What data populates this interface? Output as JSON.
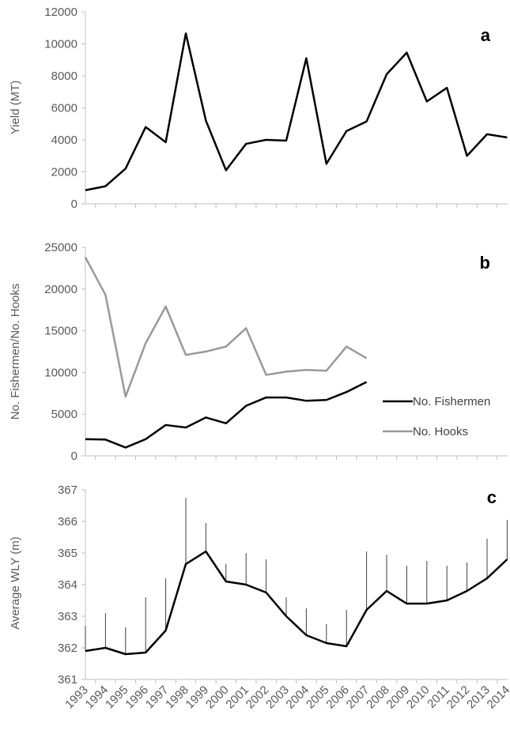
{
  "x_labels": [
    "1993",
    "1994",
    "1995",
    "1996",
    "1997",
    "1998",
    "1999",
    "2000",
    "2001",
    "2002",
    "2003",
    "2004",
    "2005",
    "2006",
    "2007",
    "2008",
    "2009",
    "2010",
    "2011",
    "2012",
    "2013",
    "2014"
  ],
  "colors": {
    "axis": "#bfbfbf",
    "tick_text": "#595959",
    "black_line": "#000000",
    "grey_line": "#999999"
  },
  "chart_data": [
    {
      "panel": "a",
      "type": "line",
      "ylabel": "Yield (MT)",
      "ylim": [
        0,
        12000
      ],
      "yticks": [
        "0",
        "2000",
        "4000",
        "6000",
        "8000",
        "10000",
        "12000"
      ],
      "x": [
        "1993",
        "1994",
        "1995",
        "1996",
        "1997",
        "1998",
        "1999",
        "2000",
        "2001",
        "2002",
        "2003",
        "2004",
        "2005",
        "2006",
        "2007",
        "2008",
        "2009",
        "2010",
        "2011",
        "2012",
        "2013",
        "2014"
      ],
      "series": [
        {
          "values": [
            850,
            1100,
            2200,
            4800,
            3850,
            10650,
            5200,
            2100,
            3750,
            4000,
            3950,
            9100,
            2500,
            4550,
            5150,
            8100,
            9450,
            6400,
            7250,
            3000,
            4350,
            4150
          ]
        }
      ]
    },
    {
      "panel": "b",
      "type": "line",
      "ylabel": "No. Fishermen/No. Hooks",
      "ylim": [
        0,
        25000
      ],
      "yticks": [
        "0",
        "5000",
        "10000",
        "15000",
        "20000",
        "25000"
      ],
      "x": [
        "1993",
        "1994",
        "1995",
        "1996",
        "1997",
        "1998",
        "1999",
        "2000",
        "2001",
        "2002",
        "2003",
        "2004",
        "2005",
        "2006",
        "2007"
      ],
      "legend_position": "right",
      "series": [
        {
          "name": "No. Fishermen",
          "values": [
            2000,
            1950,
            1000,
            2000,
            3700,
            3400,
            4600,
            3900,
            6000,
            7000,
            7000,
            6600,
            6700,
            7650,
            8850
          ]
        },
        {
          "name": "No. Hooks",
          "values": [
            23800,
            19300,
            7100,
            13500,
            17900,
            12100,
            12500,
            13100,
            15300,
            9700,
            10100,
            10300,
            10200,
            13100,
            11700
          ]
        }
      ]
    },
    {
      "panel": "c",
      "type": "line",
      "ylabel": "Average WLY (m)",
      "ylim": [
        361,
        367
      ],
      "yticks": [
        "361",
        "362",
        "363",
        "364",
        "365",
        "366",
        "367"
      ],
      "x": [
        "1993",
        "1994",
        "1995",
        "1996",
        "1997",
        "1998",
        "1999",
        "2000",
        "2001",
        "2002",
        "2003",
        "2004",
        "2005",
        "2006",
        "2007",
        "2008",
        "2009",
        "2010",
        "2011",
        "2012",
        "2013",
        "2014"
      ],
      "error_bars": "upper",
      "series": [
        {
          "values": [
            361.9,
            362.0,
            361.8,
            361.85,
            362.55,
            364.65,
            365.05,
            364.1,
            364.0,
            363.75,
            363.0,
            362.4,
            362.15,
            362.05,
            363.2,
            363.8,
            363.4,
            363.4,
            363.5,
            363.8,
            364.2,
            364.8
          ],
          "upper": [
            362.7,
            363.1,
            362.65,
            363.6,
            364.2,
            366.75,
            365.95,
            364.65,
            365.0,
            364.8,
            363.6,
            363.25,
            362.75,
            363.2,
            365.05,
            364.95,
            364.6,
            364.75,
            364.6,
            364.7,
            365.45,
            366.05
          ]
        }
      ]
    }
  ]
}
